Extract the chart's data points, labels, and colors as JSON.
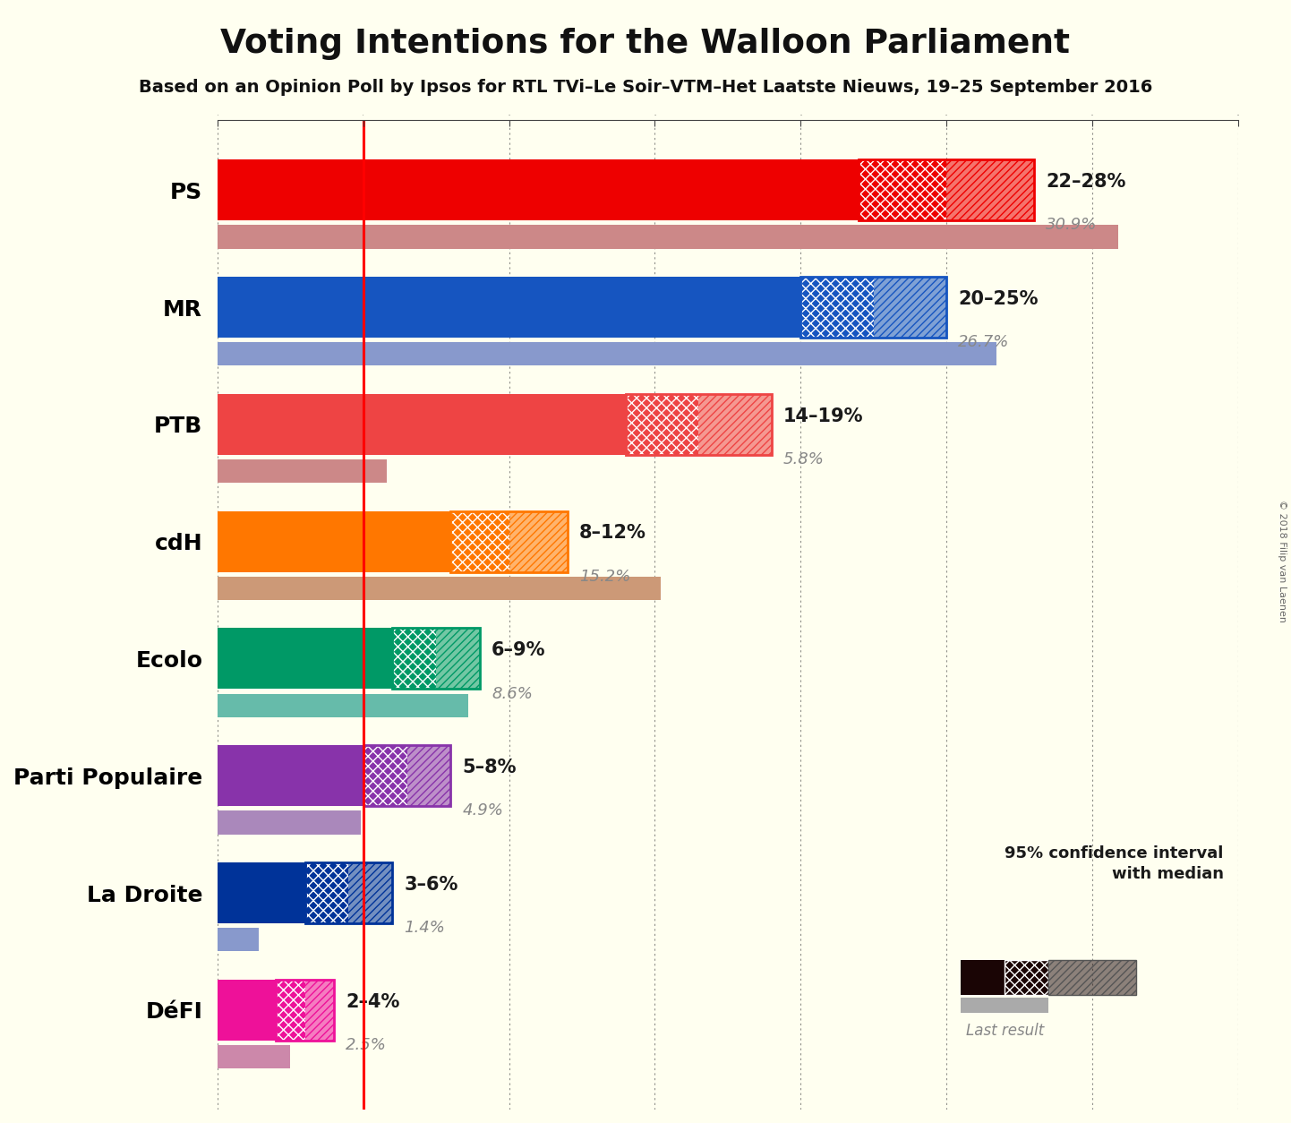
{
  "title": "Voting Intentions for the Walloon Parliament",
  "subtitle": "Based on an Opinion Poll by Ipsos for RTL TVi–Le Soir–VTM–Het Laatste Nieuws, 19–25 September 2016",
  "copyright": "© 2018 Filip van Laenen",
  "background_color": "#FFFFF0",
  "parties": [
    "PS",
    "MR",
    "PTB",
    "cdH",
    "Ecolo",
    "Parti Populaire",
    "La Droite",
    "DéFI"
  ],
  "colors": [
    "#EE0000",
    "#1655C0",
    "#EE4444",
    "#FF7700",
    "#009966",
    "#8833AA",
    "#003399",
    "#EE1199"
  ],
  "last_colors": [
    "#CC8888",
    "#8899CC",
    "#CC8888",
    "#CC9977",
    "#66BBAA",
    "#AA88BB",
    "#8899CC",
    "#CC88AA"
  ],
  "ci_low": [
    22,
    20,
    14,
    8,
    6,
    5,
    3,
    2
  ],
  "ci_high": [
    28,
    25,
    19,
    12,
    9,
    8,
    6,
    4
  ],
  "median": [
    22,
    20,
    14,
    8,
    6,
    5,
    3,
    2
  ],
  "last_result": [
    30.9,
    26.7,
    5.8,
    15.2,
    8.6,
    4.9,
    1.4,
    2.5
  ],
  "range_labels": [
    "22–28%",
    "20–25%",
    "14–19%",
    "8–12%",
    "6–9%",
    "5–8%",
    "3–6%",
    "2–4%"
  ],
  "red_line_x": 5,
  "xlim": [
    0,
    35
  ],
  "tick_interval": 5
}
